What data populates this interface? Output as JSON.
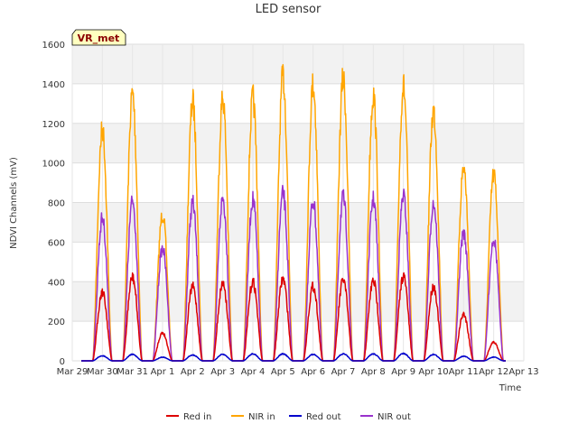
{
  "chart_data": {
    "type": "line",
    "title": "LED sensor",
    "xlabel": "Time",
    "ylabel": "NDVI Channels (mV)",
    "ylim": [
      0,
      1600
    ],
    "yticks": [
      0,
      200,
      400,
      600,
      800,
      1000,
      1200,
      1400,
      1600
    ],
    "xlim": [
      0,
      15
    ],
    "xtick_labels": [
      "Mar 29",
      "Mar 30",
      "Mar 31",
      "Apr 1",
      "Apr 2",
      "Apr 3",
      "Apr 4",
      "Apr 5",
      "Apr 6",
      "Apr 7",
      "Apr 8",
      "Apr 9",
      "Apr 10",
      "Apr 11",
      "Apr 12",
      "Apr 13"
    ],
    "badge": "VR_met",
    "legend": [
      "Red in",
      "NIR in",
      "Red out",
      "NIR out"
    ],
    "colors": {
      "Red in": "#dd0000",
      "NIR in": "#ffa500",
      "Red out": "#0000cc",
      "NIR out": "#9932cc"
    },
    "days": [
      "Mar 30",
      "Mar 31",
      "Apr 1",
      "Apr 2",
      "Apr 3",
      "Apr 4",
      "Apr 5",
      "Apr 6",
      "Apr 7",
      "Apr 8",
      "Apr 9",
      "Apr 10",
      "Apr 11",
      "Apr 12"
    ],
    "series": [
      {
        "name": "Red in",
        "daily_peak": [
          370,
          450,
          150,
          400,
          420,
          425,
          440,
          400,
          435,
          430,
          455,
          400,
          250,
          100
        ]
      },
      {
        "name": "NIR in",
        "daily_peak": [
          1230,
          1420,
          780,
          1380,
          1400,
          1400,
          1510,
          1470,
          1500,
          1410,
          1460,
          1330,
          1030,
          990
        ]
      },
      {
        "name": "Red out",
        "daily_peak": [
          28,
          35,
          20,
          32,
          35,
          38,
          38,
          35,
          38,
          38,
          40,
          35,
          25,
          20
        ]
      },
      {
        "name": "NIR out",
        "daily_peak": [
          760,
          850,
          600,
          840,
          860,
          860,
          890,
          850,
          870,
          860,
          880,
          840,
          680,
          650
        ]
      }
    ]
  }
}
